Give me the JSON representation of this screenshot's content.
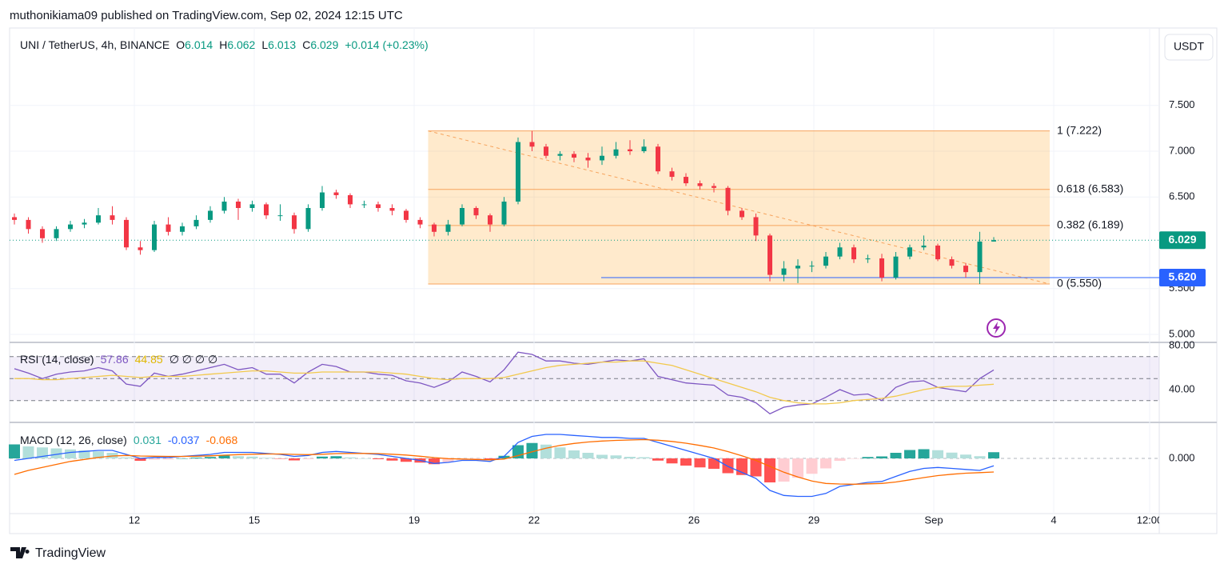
{
  "published": "muthonikiama09 published on TradingView.com, Sep 02, 2024 12:15 UTC",
  "brand": "TradingView",
  "currency": "USDT",
  "chart_data": {
    "type": "candlestick",
    "title": "UNI / TetherUS, 4h, BINANCE",
    "ohlc_labels": [
      "O",
      "H",
      "L",
      "C"
    ],
    "change": "+0.014 (+0.23%)",
    "colors": {
      "up": "#089981",
      "down": "#f23645"
    },
    "grid": true,
    "xlim": [
      8.88,
      37.64
    ],
    "xticks": [
      12,
      15,
      19,
      22,
      26,
      29,
      {
        "value": 32,
        "label": "Sep"
      },
      {
        "value": 35,
        "label": "4"
      },
      {
        "value": 37.4,
        "label": "12:00"
      }
    ],
    "ylim": [
      4.939,
      8.345
    ],
    "yticks": [
      {
        "value": 7.5,
        "label": "7.500"
      },
      {
        "value": 7,
        "label": "7.000"
      },
      {
        "value": 6.5,
        "label": "6.500"
      },
      {
        "value": 5.5,
        "label": "5.500"
      },
      {
        "value": 5,
        "label": "5.000"
      }
    ],
    "x": [
      9.0,
      9.35,
      9.7,
      10.05,
      10.4,
      10.75,
      11.1,
      11.45,
      11.8,
      12.15,
      12.5,
      12.85,
      13.2,
      13.55,
      13.9,
      14.25,
      14.6,
      14.95,
      15.3,
      15.65,
      16.0,
      16.35,
      16.7,
      17.05,
      17.4,
      17.75,
      18.1,
      18.45,
      18.8,
      19.15,
      19.5,
      19.85,
      20.2,
      20.55,
      20.9,
      21.25,
      21.6,
      21.95,
      22.3,
      22.65,
      23.0,
      23.35,
      23.7,
      24.05,
      24.4,
      24.75,
      25.1,
      25.45,
      25.8,
      26.15,
      26.5,
      26.85,
      27.2,
      27.55,
      27.9,
      28.25,
      28.6,
      28.95,
      29.3,
      29.65,
      30.0,
      30.35,
      30.7,
      31.05,
      31.4,
      31.75,
      32.1,
      32.45,
      32.8,
      33.15,
      33.5
    ],
    "ohlc": [
      [
        6.28,
        6.32,
        6.2,
        6.25
      ],
      [
        6.25,
        6.28,
        6.1,
        6.15
      ],
      [
        6.15,
        6.18,
        6.0,
        6.05
      ],
      [
        6.05,
        6.18,
        6.02,
        6.15
      ],
      [
        6.15,
        6.24,
        6.12,
        6.2
      ],
      [
        6.2,
        6.26,
        6.16,
        6.22
      ],
      [
        6.22,
        6.38,
        6.2,
        6.3
      ],
      [
        6.3,
        6.4,
        6.2,
        6.25
      ],
      [
        6.25,
        6.28,
        5.92,
        5.95
      ],
      [
        5.95,
        6.02,
        5.87,
        5.92
      ],
      [
        5.92,
        6.24,
        5.9,
        6.2
      ],
      [
        6.2,
        6.28,
        6.08,
        6.12
      ],
      [
        6.12,
        6.22,
        6.08,
        6.18
      ],
      [
        6.18,
        6.3,
        6.15,
        6.25
      ],
      [
        6.25,
        6.4,
        6.22,
        6.35
      ],
      [
        6.35,
        6.5,
        6.32,
        6.45
      ],
      [
        6.45,
        6.48,
        6.25,
        6.38
      ],
      [
        6.38,
        6.46,
        6.34,
        6.42
      ],
      [
        6.42,
        6.44,
        6.26,
        6.3
      ],
      [
        6.3,
        6.42,
        6.24,
        6.3
      ],
      [
        6.3,
        6.33,
        6.1,
        6.15
      ],
      [
        6.15,
        6.42,
        6.12,
        6.38
      ],
      [
        6.38,
        6.62,
        6.35,
        6.55
      ],
      [
        6.55,
        6.58,
        6.48,
        6.52
      ],
      [
        6.52,
        6.54,
        6.38,
        6.42
      ],
      [
        6.42,
        6.46,
        6.38,
        6.42
      ],
      [
        6.42,
        6.45,
        6.34,
        6.38
      ],
      [
        6.38,
        6.42,
        6.3,
        6.35
      ],
      [
        6.35,
        6.37,
        6.22,
        6.25
      ],
      [
        6.25,
        6.28,
        6.16,
        6.2
      ],
      [
        6.2,
        6.22,
        6.07,
        6.12
      ],
      [
        6.12,
        6.25,
        6.08,
        6.2
      ],
      [
        6.2,
        6.42,
        6.18,
        6.38
      ],
      [
        6.38,
        6.4,
        6.26,
        6.3
      ],
      [
        6.3,
        6.32,
        6.12,
        6.2
      ],
      [
        6.2,
        6.5,
        6.18,
        6.45
      ],
      [
        6.45,
        7.15,
        6.42,
        7.1
      ],
      [
        7.1,
        7.222,
        7.0,
        7.05
      ],
      [
        7.05,
        7.08,
        6.92,
        6.95
      ],
      [
        6.95,
        7.0,
        6.9,
        6.97
      ],
      [
        6.97,
        7.0,
        6.88,
        6.93
      ],
      [
        6.93,
        6.98,
        6.82,
        6.9
      ],
      [
        6.9,
        7.05,
        6.85,
        6.95
      ],
      [
        6.95,
        7.1,
        6.92,
        7.02
      ],
      [
        7.02,
        7.12,
        6.96,
        7.0
      ],
      [
        7.0,
        7.13,
        6.98,
        7.05
      ],
      [
        7.05,
        7.08,
        6.75,
        6.78
      ],
      [
        6.78,
        6.82,
        6.68,
        6.72
      ],
      [
        6.72,
        6.76,
        6.62,
        6.65
      ],
      [
        6.65,
        6.68,
        6.58,
        6.62
      ],
      [
        6.62,
        6.65,
        6.55,
        6.6
      ],
      [
        6.6,
        6.62,
        6.3,
        6.35
      ],
      [
        6.35,
        6.38,
        6.25,
        6.28
      ],
      [
        6.28,
        6.32,
        6.02,
        6.08
      ],
      [
        6.08,
        6.1,
        5.58,
        5.65
      ],
      [
        5.65,
        5.8,
        5.58,
        5.72
      ],
      [
        5.72,
        5.82,
        5.56,
        5.75
      ],
      [
        5.75,
        5.8,
        5.68,
        5.75
      ],
      [
        5.75,
        5.9,
        5.72,
        5.85
      ],
      [
        5.85,
        6.0,
        5.82,
        5.95
      ],
      [
        5.95,
        5.98,
        5.78,
        5.82
      ],
      [
        5.82,
        5.87,
        5.78,
        5.83
      ],
      [
        5.83,
        5.88,
        5.58,
        5.62
      ],
      [
        5.62,
        5.9,
        5.6,
        5.85
      ],
      [
        5.85,
        5.98,
        5.82,
        5.95
      ],
      [
        5.95,
        6.08,
        5.92,
        5.97
      ],
      [
        5.97,
        5.99,
        5.8,
        5.82
      ],
      [
        5.82,
        5.85,
        5.72,
        5.75
      ],
      [
        5.75,
        5.78,
        5.62,
        5.68
      ],
      [
        5.68,
        6.12,
        5.55,
        6.014
      ],
      [
        6.014,
        6.062,
        6.013,
        6.029
      ]
    ],
    "fib": {
      "color": "#f7a35c",
      "x_range": [
        19.35,
        34.9
      ],
      "levels": [
        {
          "value": 7.222,
          "label": "1 (7.222)"
        },
        {
          "value": 6.583,
          "label": "0.618 (6.583)"
        },
        {
          "value": 6.189,
          "label": "0.382 (6.189)"
        },
        {
          "value": 5.55,
          "label": "0 (5.550)"
        }
      ]
    },
    "hline": {
      "value": 5.62,
      "label": "5.620",
      "start": 23.68,
      "color": "#2962ff"
    },
    "rsi": {
      "label": "RSI (14, close)",
      "na_labels": "∅ ∅ ∅ ∅",
      "ylim": [
        10.9,
        81.45
      ],
      "yticks": [
        {
          "value": 80,
          "label": "80.00"
        },
        {
          "value": 40,
          "label": "40.00"
        }
      ],
      "levels": [
        70,
        50,
        30
      ],
      "series": [
        {
          "color": "#7e57c2",
          "values": [
            59,
            55,
            50,
            54,
            56,
            57,
            60,
            57,
            45,
            43,
            55,
            52,
            54,
            57,
            60,
            63,
            58,
            60,
            54,
            54,
            46,
            56,
            63,
            61,
            56,
            56,
            54,
            53,
            48,
            46,
            42,
            47,
            56,
            52,
            47,
            58,
            74,
            72,
            66,
            66,
            64,
            63,
            65,
            67,
            66,
            68,
            52,
            49,
            46,
            45,
            44,
            35,
            33,
            28,
            18,
            24,
            26,
            27,
            33,
            40,
            35,
            36,
            30,
            42,
            47,
            48,
            42,
            40,
            38,
            50,
            57.86
          ]
        },
        {
          "color": "#f2c94c",
          "values": [
            50,
            50,
            49,
            49,
            50,
            51,
            52,
            53,
            52,
            51,
            52,
            52,
            52,
            53,
            54,
            55,
            56,
            57,
            57,
            56,
            55,
            55,
            56,
            56,
            56,
            56,
            56,
            55,
            54,
            52,
            50,
            49,
            50,
            50,
            50,
            51,
            54,
            57,
            60,
            62,
            63,
            64,
            65,
            65,
            66,
            66,
            64,
            62,
            58,
            54,
            50,
            46,
            42,
            38,
            33,
            30,
            28,
            27,
            27,
            28,
            30,
            31,
            32,
            34,
            37,
            40,
            42,
            43,
            43,
            44,
            44.85
          ]
        }
      ]
    },
    "macd": {
      "label": "MACD (12, 26, close)",
      "ylim": [
        -0.268,
        0.172
      ],
      "yticks": [
        {
          "value": 0,
          "label": "0.000"
        }
      ],
      "histogram": {
        "colors": [
          "#26a69a",
          "#b2dfdb",
          "#ff5252",
          "#ffcdd2"
        ],
        "values": [
          0.07,
          0.06,
          0.055,
          0.05,
          0.045,
          0.04,
          0.035,
          0.028,
          0.005,
          -0.012,
          -0.006,
          -0.005,
          0,
          0.004,
          0.007,
          0.014,
          0.011,
          0.009,
          0.003,
          -0.002,
          -0.01,
          -0.004,
          0.009,
          0.011,
          0.005,
          0,
          -0.004,
          -0.011,
          -0.017,
          -0.021,
          -0.029,
          -0.019,
          -0.007,
          -0.005,
          -0.008,
          0.013,
          0.066,
          0.077,
          0.069,
          0.055,
          0.04,
          0.028,
          0.018,
          0.015,
          0.008,
          0.006,
          -0.011,
          -0.025,
          -0.036,
          -0.045,
          -0.052,
          -0.074,
          -0.083,
          -0.09,
          -0.12,
          -0.116,
          -0.097,
          -0.077,
          -0.05,
          -0.012,
          -0.001,
          0.007,
          0.01,
          0.028,
          0.042,
          0.046,
          0.041,
          0.029,
          0.019,
          0.011,
          0.031
        ]
      },
      "series": [
        {
          "color": "#2962ff",
          "values": [
            -0.01,
            0.0,
            0.01,
            0.02,
            0.03,
            0.035,
            0.04,
            0.04,
            0.02,
            0.0,
            0.005,
            0.005,
            0.01,
            0.015,
            0.02,
            0.03,
            0.03,
            0.03,
            0.025,
            0.02,
            0.01,
            0.015,
            0.03,
            0.035,
            0.03,
            0.025,
            0.02,
            0.01,
            0.0,
            -0.01,
            -0.025,
            -0.02,
            -0.01,
            -0.01,
            -0.015,
            0.01,
            0.08,
            0.11,
            0.12,
            0.12,
            0.115,
            0.11,
            0.105,
            0.105,
            0.1,
            0.1,
            0.08,
            0.06,
            0.04,
            0.02,
            0.0,
            -0.04,
            -0.07,
            -0.1,
            -0.16,
            -0.185,
            -0.19,
            -0.19,
            -0.175,
            -0.14,
            -0.13,
            -0.12,
            -0.115,
            -0.09,
            -0.065,
            -0.05,
            -0.045,
            -0.05,
            -0.055,
            -0.06,
            -0.037
          ]
        },
        {
          "color": "#ff6d00",
          "values": [
            -0.08,
            -0.06,
            -0.045,
            -0.03,
            -0.015,
            -0.005,
            0.005,
            0.012,
            0.015,
            0.012,
            0.011,
            0.01,
            0.01,
            0.011,
            0.013,
            0.016,
            0.019,
            0.021,
            0.022,
            0.022,
            0.02,
            0.019,
            0.021,
            0.024,
            0.025,
            0.025,
            0.024,
            0.021,
            0.017,
            0.011,
            0.004,
            -0.001,
            -0.003,
            -0.005,
            -0.007,
            -0.003,
            0.014,
            0.033,
            0.051,
            0.065,
            0.075,
            0.082,
            0.087,
            0.09,
            0.092,
            0.094,
            0.091,
            0.085,
            0.076,
            0.065,
            0.052,
            0.034,
            0.013,
            -0.01,
            -0.04,
            -0.069,
            -0.093,
            -0.113,
            -0.125,
            -0.128,
            -0.129,
            -0.127,
            -0.125,
            -0.118,
            -0.107,
            -0.096,
            -0.086,
            -0.079,
            -0.074,
            -0.071,
            -0.068
          ]
        }
      ]
    }
  }
}
